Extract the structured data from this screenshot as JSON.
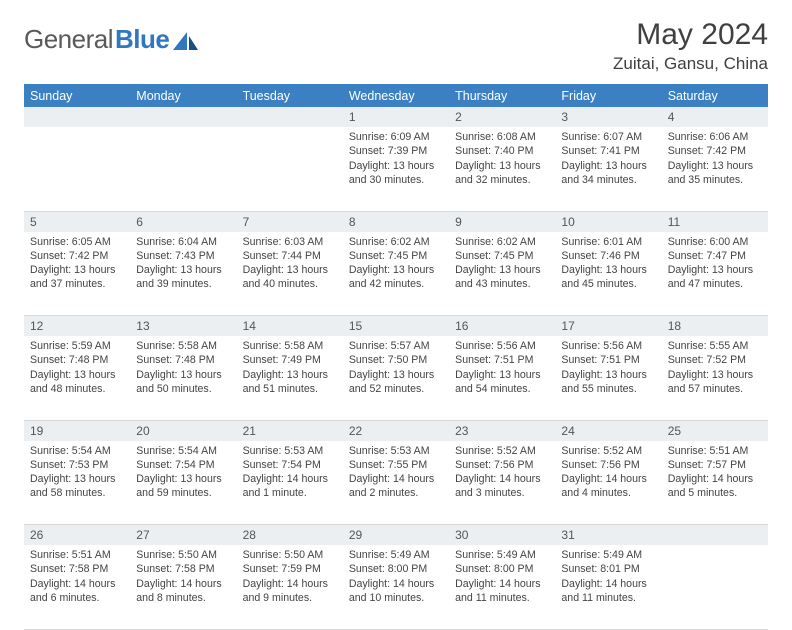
{
  "brand": {
    "part1": "General",
    "part2": "Blue"
  },
  "title": "May 2024",
  "location": "Zuitai, Gansu, China",
  "colors": {
    "header_bg": "#3b80c2",
    "daynum_bg": "#ebeff2",
    "text": "#444444",
    "brand_gray": "#5a5a5a",
    "brand_blue": "#2f78bf"
  },
  "weekdays": [
    "Sunday",
    "Monday",
    "Tuesday",
    "Wednesday",
    "Thursday",
    "Friday",
    "Saturday"
  ],
  "weeks": [
    [
      null,
      null,
      null,
      {
        "n": "1",
        "sr": "Sunrise: 6:09 AM",
        "ss": "Sunset: 7:39 PM",
        "dl": "Daylight: 13 hours and 30 minutes."
      },
      {
        "n": "2",
        "sr": "Sunrise: 6:08 AM",
        "ss": "Sunset: 7:40 PM",
        "dl": "Daylight: 13 hours and 32 minutes."
      },
      {
        "n": "3",
        "sr": "Sunrise: 6:07 AM",
        "ss": "Sunset: 7:41 PM",
        "dl": "Daylight: 13 hours and 34 minutes."
      },
      {
        "n": "4",
        "sr": "Sunrise: 6:06 AM",
        "ss": "Sunset: 7:42 PM",
        "dl": "Daylight: 13 hours and 35 minutes."
      }
    ],
    [
      {
        "n": "5",
        "sr": "Sunrise: 6:05 AM",
        "ss": "Sunset: 7:42 PM",
        "dl": "Daylight: 13 hours and 37 minutes."
      },
      {
        "n": "6",
        "sr": "Sunrise: 6:04 AM",
        "ss": "Sunset: 7:43 PM",
        "dl": "Daylight: 13 hours and 39 minutes."
      },
      {
        "n": "7",
        "sr": "Sunrise: 6:03 AM",
        "ss": "Sunset: 7:44 PM",
        "dl": "Daylight: 13 hours and 40 minutes."
      },
      {
        "n": "8",
        "sr": "Sunrise: 6:02 AM",
        "ss": "Sunset: 7:45 PM",
        "dl": "Daylight: 13 hours and 42 minutes."
      },
      {
        "n": "9",
        "sr": "Sunrise: 6:02 AM",
        "ss": "Sunset: 7:45 PM",
        "dl": "Daylight: 13 hours and 43 minutes."
      },
      {
        "n": "10",
        "sr": "Sunrise: 6:01 AM",
        "ss": "Sunset: 7:46 PM",
        "dl": "Daylight: 13 hours and 45 minutes."
      },
      {
        "n": "11",
        "sr": "Sunrise: 6:00 AM",
        "ss": "Sunset: 7:47 PM",
        "dl": "Daylight: 13 hours and 47 minutes."
      }
    ],
    [
      {
        "n": "12",
        "sr": "Sunrise: 5:59 AM",
        "ss": "Sunset: 7:48 PM",
        "dl": "Daylight: 13 hours and 48 minutes."
      },
      {
        "n": "13",
        "sr": "Sunrise: 5:58 AM",
        "ss": "Sunset: 7:48 PM",
        "dl": "Daylight: 13 hours and 50 minutes."
      },
      {
        "n": "14",
        "sr": "Sunrise: 5:58 AM",
        "ss": "Sunset: 7:49 PM",
        "dl": "Daylight: 13 hours and 51 minutes."
      },
      {
        "n": "15",
        "sr": "Sunrise: 5:57 AM",
        "ss": "Sunset: 7:50 PM",
        "dl": "Daylight: 13 hours and 52 minutes."
      },
      {
        "n": "16",
        "sr": "Sunrise: 5:56 AM",
        "ss": "Sunset: 7:51 PM",
        "dl": "Daylight: 13 hours and 54 minutes."
      },
      {
        "n": "17",
        "sr": "Sunrise: 5:56 AM",
        "ss": "Sunset: 7:51 PM",
        "dl": "Daylight: 13 hours and 55 minutes."
      },
      {
        "n": "18",
        "sr": "Sunrise: 5:55 AM",
        "ss": "Sunset: 7:52 PM",
        "dl": "Daylight: 13 hours and 57 minutes."
      }
    ],
    [
      {
        "n": "19",
        "sr": "Sunrise: 5:54 AM",
        "ss": "Sunset: 7:53 PM",
        "dl": "Daylight: 13 hours and 58 minutes."
      },
      {
        "n": "20",
        "sr": "Sunrise: 5:54 AM",
        "ss": "Sunset: 7:54 PM",
        "dl": "Daylight: 13 hours and 59 minutes."
      },
      {
        "n": "21",
        "sr": "Sunrise: 5:53 AM",
        "ss": "Sunset: 7:54 PM",
        "dl": "Daylight: 14 hours and 1 minute."
      },
      {
        "n": "22",
        "sr": "Sunrise: 5:53 AM",
        "ss": "Sunset: 7:55 PM",
        "dl": "Daylight: 14 hours and 2 minutes."
      },
      {
        "n": "23",
        "sr": "Sunrise: 5:52 AM",
        "ss": "Sunset: 7:56 PM",
        "dl": "Daylight: 14 hours and 3 minutes."
      },
      {
        "n": "24",
        "sr": "Sunrise: 5:52 AM",
        "ss": "Sunset: 7:56 PM",
        "dl": "Daylight: 14 hours and 4 minutes."
      },
      {
        "n": "25",
        "sr": "Sunrise: 5:51 AM",
        "ss": "Sunset: 7:57 PM",
        "dl": "Daylight: 14 hours and 5 minutes."
      }
    ],
    [
      {
        "n": "26",
        "sr": "Sunrise: 5:51 AM",
        "ss": "Sunset: 7:58 PM",
        "dl": "Daylight: 14 hours and 6 minutes."
      },
      {
        "n": "27",
        "sr": "Sunrise: 5:50 AM",
        "ss": "Sunset: 7:58 PM",
        "dl": "Daylight: 14 hours and 8 minutes."
      },
      {
        "n": "28",
        "sr": "Sunrise: 5:50 AM",
        "ss": "Sunset: 7:59 PM",
        "dl": "Daylight: 14 hours and 9 minutes."
      },
      {
        "n": "29",
        "sr": "Sunrise: 5:49 AM",
        "ss": "Sunset: 8:00 PM",
        "dl": "Daylight: 14 hours and 10 minutes."
      },
      {
        "n": "30",
        "sr": "Sunrise: 5:49 AM",
        "ss": "Sunset: 8:00 PM",
        "dl": "Daylight: 14 hours and 11 minutes."
      },
      {
        "n": "31",
        "sr": "Sunrise: 5:49 AM",
        "ss": "Sunset: 8:01 PM",
        "dl": "Daylight: 14 hours and 11 minutes."
      },
      null
    ]
  ]
}
